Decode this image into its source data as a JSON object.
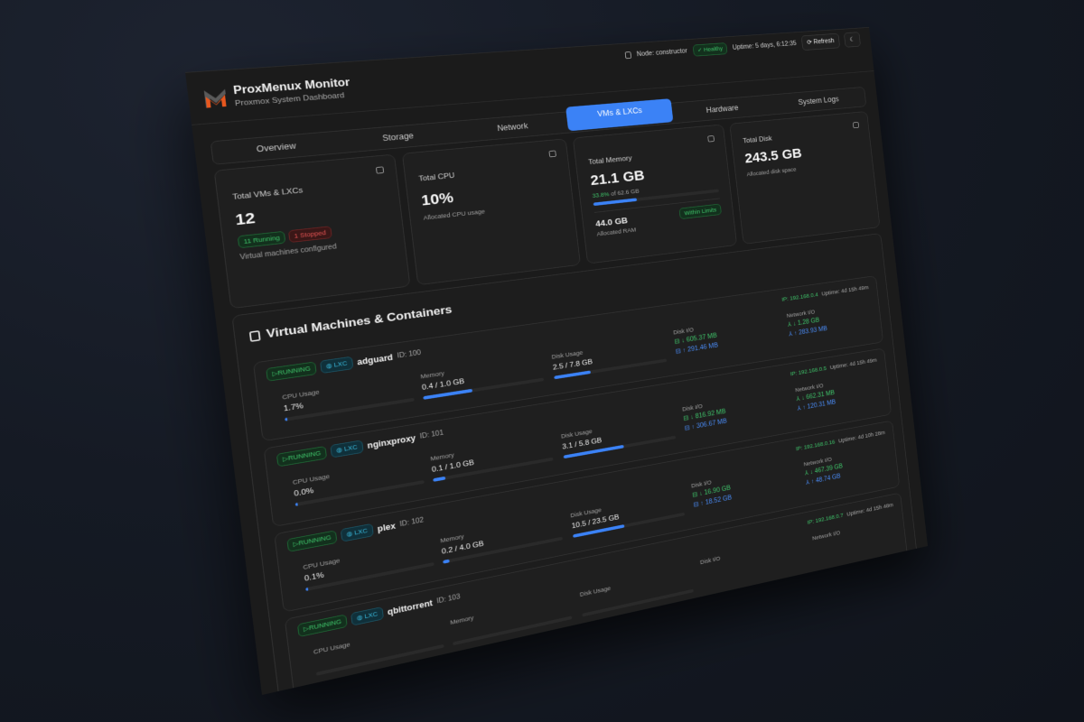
{
  "header": {
    "title": "ProxMenux Monitor",
    "subtitle": "Proxmox System Dashboard",
    "node": "Node: constructor",
    "health": "Healthy",
    "uptime": "Uptime: 5 days, 6:12:35",
    "refresh": "Refresh"
  },
  "tabs": [
    "Overview",
    "Storage",
    "Network",
    "VMs & LXCs",
    "Hardware",
    "System Logs"
  ],
  "active_tab": "VMs & LXCs",
  "colors": {
    "accent": "#3b82f6",
    "running": "#3fc46a",
    "stopped": "#e05252",
    "lxc": "#38b6d8"
  },
  "cards": {
    "vms": {
      "label": "Total VMs & LXCs",
      "value": "12",
      "running": "11 Running",
      "stopped": "1 Stopped",
      "sub": "Virtual machines configured"
    },
    "cpu": {
      "label": "Total CPU",
      "value": "10%",
      "sub": "Allocated CPU usage"
    },
    "memory": {
      "label": "Total Memory",
      "value": "21.1 GB",
      "pct": "33.8%",
      "of": "of 62.6 GB",
      "pct_value": 33.8,
      "allocated": "44.0 GB",
      "allocated_label": "Allocated RAM",
      "status": "Within Limits"
    },
    "disk": {
      "label": "Total Disk",
      "value": "243.5 GB",
      "sub": "Allocated disk space"
    }
  },
  "section": {
    "title": "Virtual Machines & Containers"
  },
  "labels": {
    "cpu": "CPU Usage",
    "memory": "Memory",
    "disk": "Disk Usage",
    "disk_io": "Disk I/O",
    "net_io": "Network I/O",
    "ip_prefix": "IP: ",
    "uptime_prefix": "Uptime: "
  },
  "vms": [
    {
      "status": "RUNNING",
      "type": "LXC",
      "name": "adguard",
      "id": "ID: 100",
      "ip": "IP: 192.168.0.4",
      "uptime": "Uptime: 4d 15h 49m",
      "cpu": "1.7%",
      "cpu_pct": 1.7,
      "memory": "0.4 / 1.0 GB",
      "mem_pct": 40,
      "disk": "2.5 / 7.8 GB",
      "disk_pct": 32,
      "disk_read": "↓ 605.37 MB",
      "disk_write": "↑ 291.46 MB",
      "net_in": "↓ 1.28 GB",
      "net_out": "↑ 283.93 MB"
    },
    {
      "status": "RUNNING",
      "type": "LXC",
      "name": "nginxproxy",
      "id": "ID: 101",
      "ip": "IP: 192.168.0.5",
      "uptime": "Uptime: 4d 15h 49m",
      "cpu": "0.0%",
      "cpu_pct": 0,
      "memory": "0.1 / 1.0 GB",
      "mem_pct": 10,
      "disk": "3.1 / 5.8 GB",
      "disk_pct": 53,
      "disk_read": "↓ 816.92 MB",
      "disk_write": "↑ 306.67 MB",
      "net_in": "↓ 662.31 MB",
      "net_out": "↑ 120.31 MB"
    },
    {
      "status": "RUNNING",
      "type": "LXC",
      "name": "plex",
      "id": "ID: 102",
      "ip": "IP: 192.168.0.16",
      "uptime": "Uptime: 4d 10h 28m",
      "cpu": "0.1%",
      "cpu_pct": 0.1,
      "memory": "0.2 / 4.0 GB",
      "mem_pct": 5,
      "disk": "10.5 / 23.5 GB",
      "disk_pct": 45,
      "disk_read": "↓ 16.90 GB",
      "disk_write": "↑ 18.52 GB",
      "net_in": "↓ 467.39 GB",
      "net_out": "↑ 48.74 GB"
    },
    {
      "status": "RUNNING",
      "type": "LXC",
      "name": "qbittorrent",
      "id": "ID: 103",
      "ip": "IP: 192.168.0.7",
      "uptime": "Uptime: 4d 15h 48m"
    }
  ]
}
